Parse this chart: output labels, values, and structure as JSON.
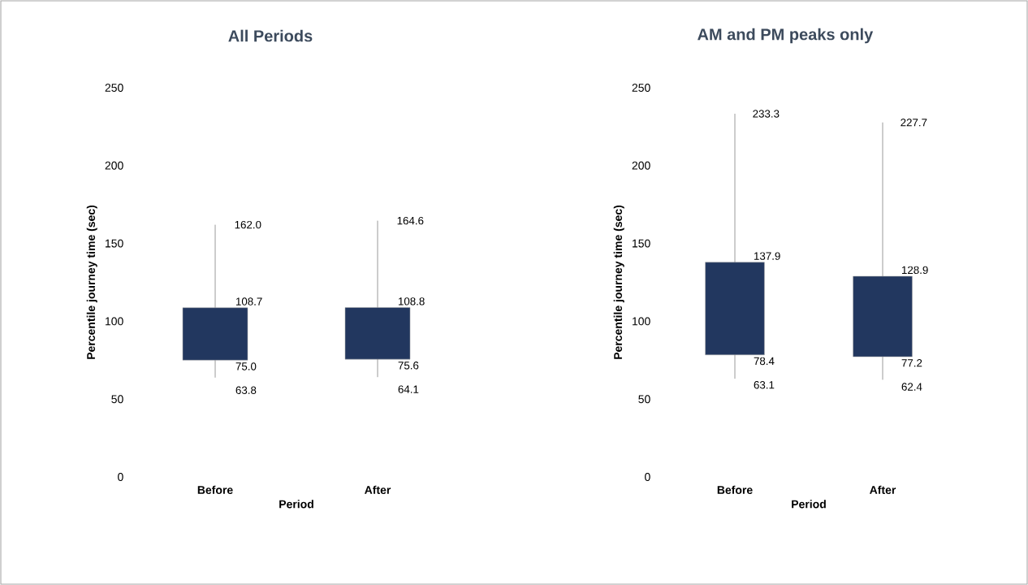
{
  "chart_data": [
    {
      "type": "candlestick",
      "title": "All Periods",
      "xlabel": "Period",
      "ylabel": "Percentile journey time (sec)",
      "categories": [
        "Before",
        "After"
      ],
      "ohlc": [
        [
          75.0,
          162.0,
          63.8,
          108.7
        ],
        [
          75.6,
          164.6,
          64.1,
          108.8
        ]
      ],
      "value_labels": [
        [
          "75.0",
          "162.0",
          "63.8",
          "108.7"
        ],
        [
          "75.6",
          "164.6",
          "64.1",
          "108.8"
        ]
      ],
      "color": "#22375f",
      "ylim": [
        0,
        250
      ],
      "yticks": [
        0,
        50,
        100,
        150,
        200,
        250
      ]
    },
    {
      "type": "candlestick",
      "title": "AM and PM peaks only",
      "xlabel": "Period",
      "ylabel": "Percentile journey time (sec)",
      "categories": [
        "Before",
        "After"
      ],
      "ohlc": [
        [
          78.4,
          233.3,
          63.1,
          137.9
        ],
        [
          77.2,
          227.7,
          62.4,
          128.9
        ]
      ],
      "value_labels": [
        [
          "78.4",
          "233.3",
          "63.1",
          "137.9"
        ],
        [
          "77.2",
          "227.7",
          "62.4",
          "128.9"
        ]
      ],
      "color": "#22375f",
      "ylim": [
        0,
        250
      ],
      "yticks": [
        0,
        50,
        100,
        150,
        200,
        250
      ]
    }
  ]
}
